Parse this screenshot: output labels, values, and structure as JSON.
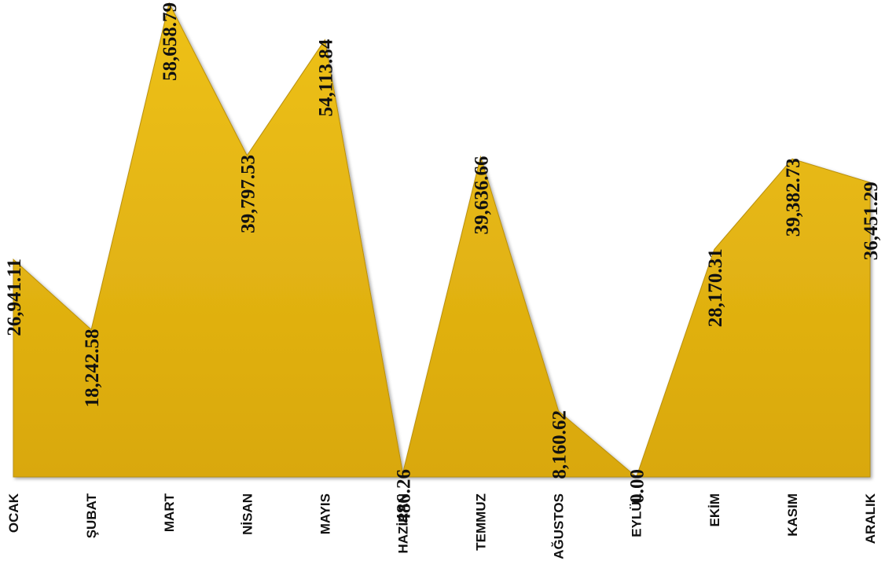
{
  "chart_data": {
    "type": "area",
    "categories": [
      "OCAK",
      "ŞUBAT",
      "MART",
      "NİSAN",
      "MAYIS",
      "HAZİRAN",
      "TEMMUZ",
      "AĞUSTOS",
      "EYLÜL",
      "EKİM",
      "KASIM",
      "ARALIK"
    ],
    "values": [
      26941.11,
      18242.58,
      58658.79,
      39797.53,
      54113.84,
      486.26,
      39636.66,
      8160.62,
      0.0,
      28170.31,
      39382.73,
      36451.29
    ],
    "data_labels": [
      "26,941.11",
      "18,242.58",
      "58,658.79",
      "39,797.53",
      "54,113.84",
      "486.26",
      "39,636.66",
      "8,160.62",
      "0.00",
      "28,170.31",
      "39,382.73",
      "36,451.29"
    ],
    "title": "",
    "xlabel": "",
    "ylabel": "",
    "ylim": [
      0,
      58658.79
    ],
    "grid": false,
    "legend": "none",
    "colors": {
      "fill_top": "#eec11a",
      "fill_bottom": "#d9a80c",
      "edge": "#b98f08",
      "text": "#111111"
    }
  }
}
